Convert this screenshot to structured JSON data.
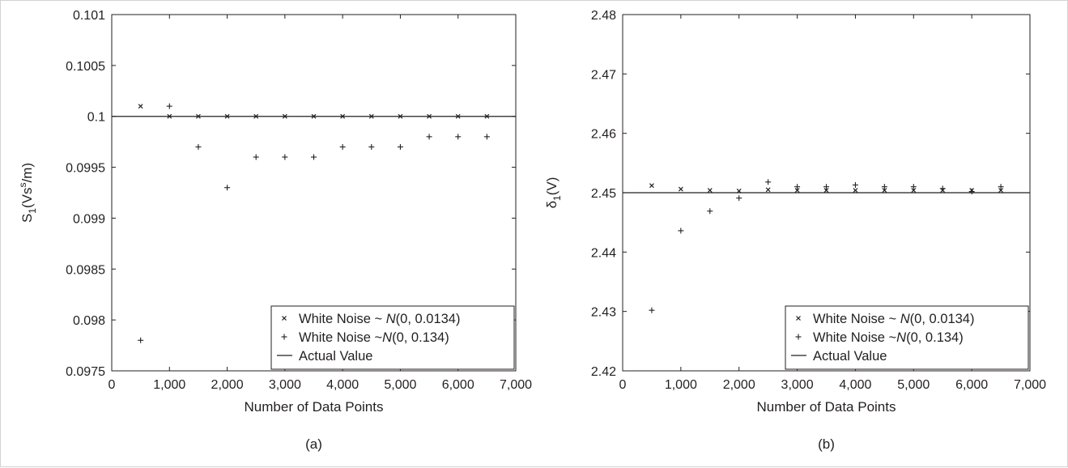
{
  "chart_data": [
    {
      "type": "scatter",
      "caption": "(a)",
      "xlabel": "Number of Data Points",
      "ylabel": {
        "main": "S",
        "sub": "1",
        "mid": "(Vs",
        "sup": "s",
        "end": "/m)"
      },
      "xlim": [
        0,
        7000
      ],
      "ylim": [
        0.0975,
        0.101
      ],
      "xticks": [
        {
          "v": 0,
          "label": "0"
        },
        {
          "v": 1000,
          "label": "1,000"
        },
        {
          "v": 2000,
          "label": "2,000"
        },
        {
          "v": 3000,
          "label": "3,000"
        },
        {
          "v": 4000,
          "label": "4,000"
        },
        {
          "v": 5000,
          "label": "5,000"
        },
        {
          "v": 6000,
          "label": "6,000"
        },
        {
          "v": 7000,
          "label": "7,000"
        }
      ],
      "yticks": [
        {
          "v": 0.0975,
          "label": "0.0975"
        },
        {
          "v": 0.098,
          "label": "0.098"
        },
        {
          "v": 0.0985,
          "label": "0.0985"
        },
        {
          "v": 0.099,
          "label": "0.099"
        },
        {
          "v": 0.0995,
          "label": "0.0995"
        },
        {
          "v": 0.1,
          "label": "0.1"
        },
        {
          "v": 0.1005,
          "label": "0.1005"
        },
        {
          "v": 0.101,
          "label": "0.101"
        }
      ],
      "grid": false,
      "legend_position": "bottom-right",
      "series": [
        {
          "name": "White Noise ~ N(0, 0.0134)",
          "marker": "x",
          "x": [
            500,
            1000,
            1500,
            2000,
            2500,
            3000,
            3500,
            4000,
            4500,
            5000,
            5500,
            6000,
            6500
          ],
          "y": [
            0.1001,
            0.1,
            0.1,
            0.1,
            0.1,
            0.1,
            0.1,
            0.1,
            0.1,
            0.1,
            0.1,
            0.1,
            0.1
          ]
        },
        {
          "name": "White Noise ~N(0, 0.134)",
          "marker": "plus",
          "x": [
            500,
            1000,
            1500,
            2000,
            2500,
            3000,
            3500,
            4000,
            4500,
            5000,
            5500,
            6000,
            6500
          ],
          "y": [
            0.0978,
            0.1001,
            0.0997,
            0.0993,
            0.0996,
            0.0996,
            0.0996,
            0.0997,
            0.0997,
            0.0997,
            0.0998,
            0.0998,
            0.0998
          ]
        },
        {
          "name": "Actual Value",
          "marker": "line",
          "x": [
            0,
            7000
          ],
          "y": [
            0.1,
            0.1
          ]
        }
      ]
    },
    {
      "type": "scatter",
      "caption": "(b)",
      "xlabel": "Number of Data Points",
      "ylabel": {
        "main": "δ",
        "sub": "1",
        "end": "(V)"
      },
      "xlim": [
        0,
        7000
      ],
      "ylim": [
        2.42,
        2.48
      ],
      "xticks": [
        {
          "v": 0,
          "label": "0"
        },
        {
          "v": 1000,
          "label": "1,000"
        },
        {
          "v": 2000,
          "label": "2,000"
        },
        {
          "v": 3000,
          "label": "3,000"
        },
        {
          "v": 4000,
          "label": "4,000"
        },
        {
          "v": 5000,
          "label": "5,000"
        },
        {
          "v": 6000,
          "label": "6,000"
        },
        {
          "v": 7000,
          "label": "7,000"
        }
      ],
      "yticks": [
        {
          "v": 2.42,
          "label": "2.42"
        },
        {
          "v": 2.43,
          "label": "2.43"
        },
        {
          "v": 2.44,
          "label": "2.44"
        },
        {
          "v": 2.45,
          "label": "2.45"
        },
        {
          "v": 2.46,
          "label": "2.46"
        },
        {
          "v": 2.47,
          "label": "2.47"
        },
        {
          "v": 2.48,
          "label": "2.48"
        }
      ],
      "grid": false,
      "legend_position": "bottom-right",
      "series": [
        {
          "name": "White Noise ~ N(0, 0.0134)",
          "marker": "x",
          "x": [
            500,
            1000,
            1500,
            2000,
            2500,
            3000,
            3500,
            4000,
            4500,
            5000,
            5500,
            6000,
            6500
          ],
          "y": [
            2.4512,
            2.4506,
            2.4504,
            2.4503,
            2.4505,
            2.4504,
            2.4504,
            2.4504,
            2.4504,
            2.4504,
            2.4504,
            2.4504,
            2.4504
          ]
        },
        {
          "name": "White Noise ~N(0, 0.134)",
          "marker": "plus",
          "x": [
            500,
            1000,
            1500,
            2000,
            2500,
            3000,
            3500,
            4000,
            4500,
            5000,
            5500,
            6000,
            6500
          ],
          "y": [
            2.4302,
            2.4436,
            2.4469,
            2.4491,
            2.4518,
            2.451,
            2.451,
            2.4513,
            2.451,
            2.451,
            2.4507,
            2.4502,
            2.451
          ]
        },
        {
          "name": "Actual Value",
          "marker": "line",
          "x": [
            0,
            7000
          ],
          "y": [
            2.45,
            2.45
          ]
        }
      ]
    }
  ]
}
